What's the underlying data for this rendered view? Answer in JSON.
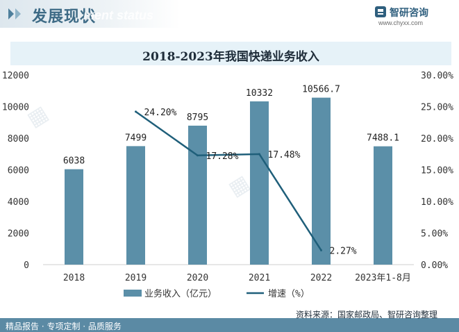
{
  "header": {
    "title": "发展现状",
    "ghost_text": "ment status",
    "brand_name": "智研咨询",
    "brand_url": "www.chyxx.com"
  },
  "chart_data": {
    "type": "bar",
    "title": "2018-2023年我国快递业务收入",
    "categories": [
      "2018",
      "2019",
      "2020",
      "2021",
      "2022",
      "2023年1-8月"
    ],
    "series": [
      {
        "name": "业务收入（亿元）",
        "type": "bar",
        "axis": "left",
        "values": [
          6038,
          7499,
          8795,
          10332,
          10566.7,
          7488.1
        ],
        "labels": [
          "6038",
          "7499",
          "8795",
          "10332",
          "10566.7",
          "7488.1"
        ],
        "color": "#5b8fa8"
      },
      {
        "name": "增速（%）",
        "type": "line",
        "axis": "right",
        "values": [
          null,
          24.2,
          17.28,
          17.48,
          2.27,
          null
        ],
        "labels": [
          "",
          "24.20%",
          "17.28%",
          "17.48%",
          "2.27%",
          ""
        ],
        "color": "#1f5f7a"
      }
    ],
    "y_left": {
      "min": 0,
      "max": 12000,
      "ticks": [
        "0",
        "2000",
        "4000",
        "6000",
        "8000",
        "10000",
        "12000"
      ]
    },
    "y_right": {
      "min": 0,
      "max": 30,
      "ticks": [
        "0.00%",
        "5.00%",
        "10.00%",
        "15.00%",
        "20.00%",
        "25.00%",
        "30.00%"
      ]
    },
    "grid": false,
    "legend_position": "bottom"
  },
  "footer": {
    "left": "精品报告 · 专项定制 · 品质服务",
    "source": "资料来源：国家邮政局、智研咨询整理"
  },
  "watermark_text": "智研咨询"
}
